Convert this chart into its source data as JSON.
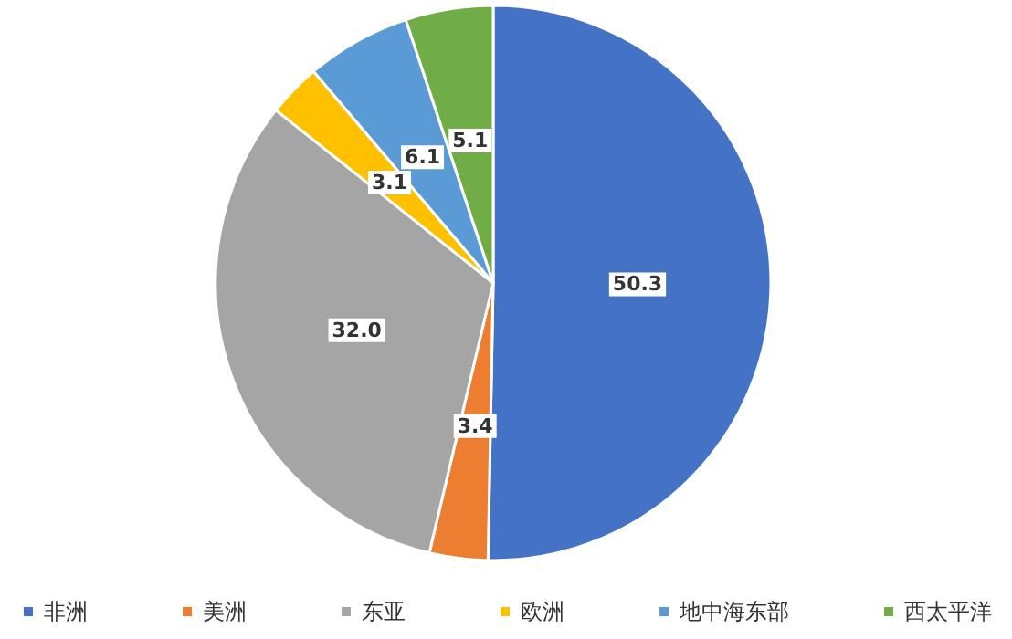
{
  "chart_data": {
    "type": "pie",
    "categories": [
      "非洲",
      "美洲",
      "东亚",
      "欧洲",
      "地中海东部",
      "西太平洋"
    ],
    "values": [
      50.3,
      3.4,
      32.0,
      3.1,
      6.1,
      5.1
    ],
    "value_labels": [
      "50.3",
      "3.4",
      "32.0",
      "3.1",
      "6.1",
      "5.1"
    ],
    "colors": [
      "#4472c4",
      "#ed7d31",
      "#a5a5a5",
      "#ffc000",
      "#5b9bd5",
      "#70ad47"
    ],
    "legend": "bottom"
  }
}
